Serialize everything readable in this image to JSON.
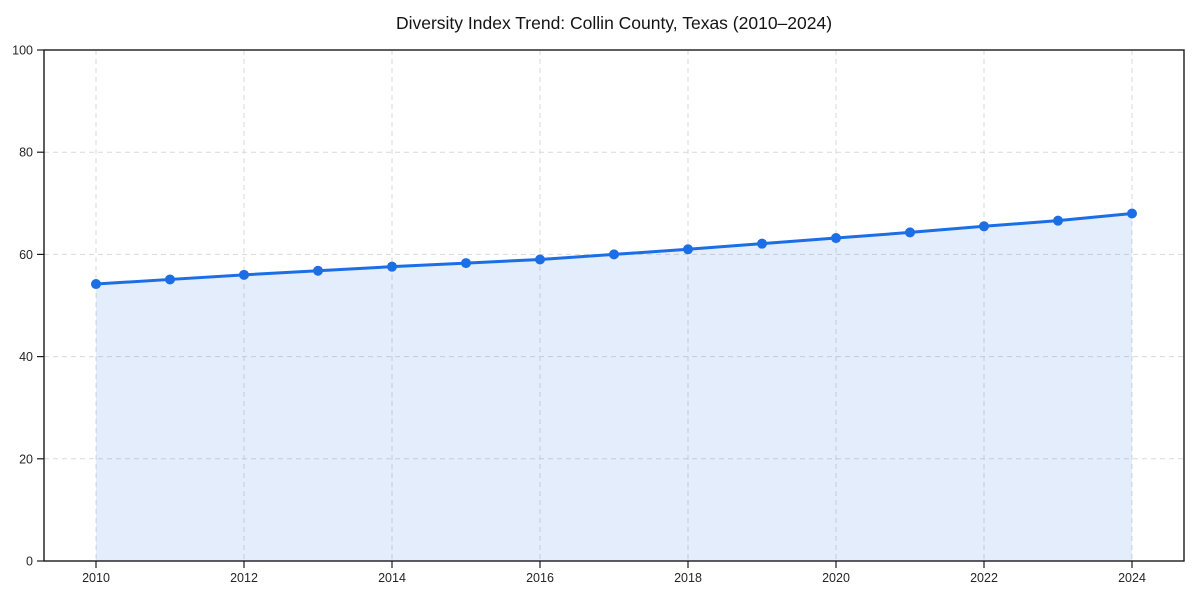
{
  "chart_data": {
    "type": "line",
    "title": "Diversity Index Trend: Collin County, Texas (2010–2024)",
    "series_name": "Diversity Index",
    "x": [
      2010,
      2011,
      2012,
      2013,
      2014,
      2015,
      2016,
      2017,
      2018,
      2019,
      2020,
      2021,
      2022,
      2023,
      2024
    ],
    "values": [
      54.2,
      55.1,
      56.0,
      56.8,
      57.6,
      58.3,
      59.0,
      60.0,
      61.0,
      62.1,
      63.2,
      64.3,
      65.5,
      66.6,
      68.0
    ],
    "xticks": [
      2010,
      2012,
      2014,
      2016,
      2018,
      2020,
      2022,
      2024
    ],
    "yticks": [
      0,
      20,
      40,
      60,
      80,
      100
    ],
    "ylim": [
      0,
      100
    ],
    "xlabel": "",
    "ylabel": "",
    "grid": true,
    "grid_style": "dashed",
    "legend_position": "none",
    "area_fill": true,
    "markers": true,
    "colors": {
      "line": "#1b6ee6",
      "marker": "#1b6ee6",
      "area": "rgba(27,110,230,0.12)",
      "grid": "#d9d9d9",
      "axis": "#1a1a1a",
      "tick_label": "#262626",
      "title": "#141414",
      "background": "#ffffff"
    }
  }
}
